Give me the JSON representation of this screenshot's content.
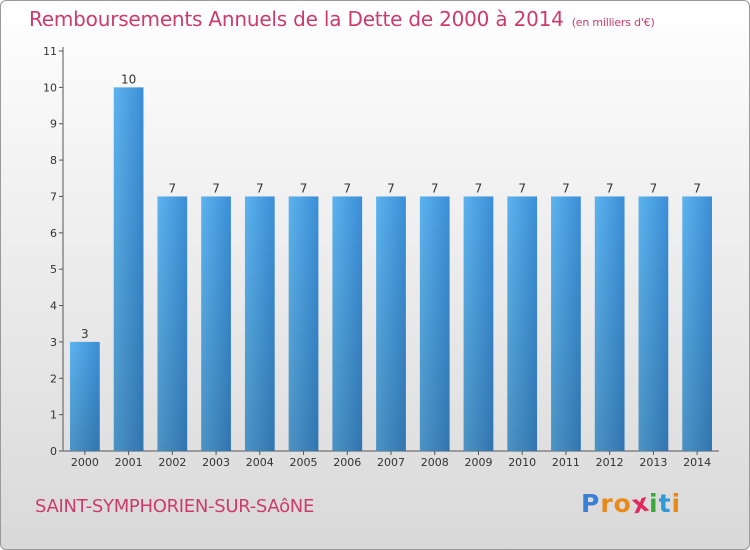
{
  "chart_data": {
    "type": "bar",
    "title": "Remboursements Annuels de la Dette de 2000 à 2014",
    "subtitle": "(en milliers d'€)",
    "categories": [
      "2000",
      "2001",
      "2002",
      "2003",
      "2004",
      "2005",
      "2006",
      "2007",
      "2008",
      "2009",
      "2010",
      "2011",
      "2012",
      "2013",
      "2014"
    ],
    "values": [
      3,
      10,
      7,
      7,
      7,
      7,
      7,
      7,
      7,
      7,
      7,
      7,
      7,
      7,
      7
    ],
    "y_ticks": [
      0,
      1,
      2,
      3,
      4,
      5,
      6,
      7,
      8,
      9,
      10,
      11
    ],
    "ylim": [
      0,
      11
    ],
    "xlabel": "",
    "ylabel": "",
    "grid": false,
    "bar_color": "#4a9fe3"
  },
  "footer": {
    "commune": "SAINT-SYMPHORIEN-SUR-SAôNE",
    "logo_letters": [
      "P",
      "r",
      "o",
      "x",
      "i",
      "t",
      "i"
    ],
    "logo_colors": [
      "#3a7fd6",
      "#e8891a",
      "#e8891a",
      "#e02b5c",
      "#3aa83a",
      "#2f9ad6",
      "#e8891a"
    ]
  },
  "colors": {
    "accent": "#cc3b6c"
  }
}
